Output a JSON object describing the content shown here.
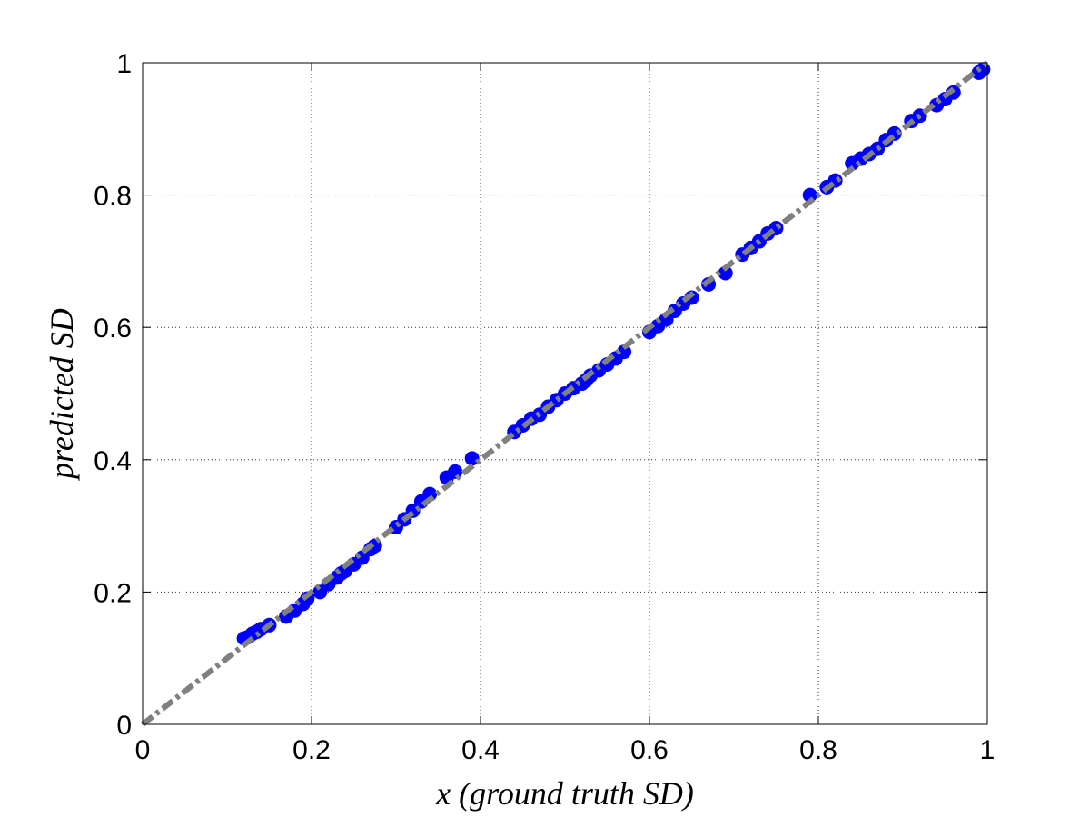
{
  "chart_data": {
    "type": "scatter",
    "xlabel": "x (ground truth SD)",
    "ylabel": "predicted SD",
    "xlim": [
      0,
      1
    ],
    "ylim": [
      0,
      1
    ],
    "x_ticks": [
      0,
      0.2,
      0.4,
      0.6,
      0.8,
      1
    ],
    "y_ticks": [
      0,
      0.2,
      0.4,
      0.6,
      0.8,
      1
    ],
    "x_tick_labels": [
      "0",
      "0.2",
      "0.4",
      "0.6",
      "0.8",
      "1"
    ],
    "y_tick_labels": [
      "0",
      "0.2",
      "0.4",
      "0.6",
      "0.8",
      "1"
    ],
    "grid": true,
    "marker_color": "#0000ff",
    "reference_line_color": "#808080",
    "reference_line": {
      "x": [
        0,
        1
      ],
      "y": [
        0,
        1
      ]
    },
    "series": [
      {
        "points": [
          [
            0.12,
            0.13
          ],
          [
            0.125,
            0.132
          ],
          [
            0.13,
            0.137
          ],
          [
            0.135,
            0.14
          ],
          [
            0.14,
            0.144
          ],
          [
            0.15,
            0.15
          ],
          [
            0.17,
            0.163
          ],
          [
            0.18,
            0.172
          ],
          [
            0.19,
            0.182
          ],
          [
            0.195,
            0.19
          ],
          [
            0.21,
            0.2
          ],
          [
            0.22,
            0.212
          ],
          [
            0.23,
            0.222
          ],
          [
            0.235,
            0.228
          ],
          [
            0.24,
            0.232
          ],
          [
            0.25,
            0.242
          ],
          [
            0.26,
            0.252
          ],
          [
            0.27,
            0.265
          ],
          [
            0.275,
            0.27
          ],
          [
            0.3,
            0.298
          ],
          [
            0.31,
            0.31
          ],
          [
            0.32,
            0.323
          ],
          [
            0.33,
            0.337
          ],
          [
            0.34,
            0.348
          ],
          [
            0.36,
            0.373
          ],
          [
            0.37,
            0.382
          ],
          [
            0.39,
            0.402
          ],
          [
            0.44,
            0.442
          ],
          [
            0.45,
            0.452
          ],
          [
            0.46,
            0.462
          ],
          [
            0.47,
            0.468
          ],
          [
            0.48,
            0.48
          ],
          [
            0.49,
            0.49
          ],
          [
            0.5,
            0.5
          ],
          [
            0.51,
            0.508
          ],
          [
            0.52,
            0.515
          ],
          [
            0.525,
            0.52
          ],
          [
            0.53,
            0.527
          ],
          [
            0.54,
            0.535
          ],
          [
            0.55,
            0.544
          ],
          [
            0.56,
            0.553
          ],
          [
            0.57,
            0.563
          ],
          [
            0.6,
            0.593
          ],
          [
            0.61,
            0.602
          ],
          [
            0.62,
            0.612
          ],
          [
            0.63,
            0.625
          ],
          [
            0.64,
            0.636
          ],
          [
            0.65,
            0.645
          ],
          [
            0.67,
            0.665
          ],
          [
            0.69,
            0.682
          ],
          [
            0.71,
            0.71
          ],
          [
            0.72,
            0.72
          ],
          [
            0.73,
            0.73
          ],
          [
            0.74,
            0.742
          ],
          [
            0.75,
            0.75
          ],
          [
            0.79,
            0.8
          ],
          [
            0.81,
            0.812
          ],
          [
            0.82,
            0.822
          ],
          [
            0.84,
            0.848
          ],
          [
            0.85,
            0.855
          ],
          [
            0.86,
            0.862
          ],
          [
            0.87,
            0.87
          ],
          [
            0.88,
            0.883
          ],
          [
            0.89,
            0.893
          ],
          [
            0.91,
            0.912
          ],
          [
            0.92,
            0.92
          ],
          [
            0.94,
            0.936
          ],
          [
            0.95,
            0.945
          ],
          [
            0.96,
            0.955
          ],
          [
            0.99,
            0.985
          ],
          [
            0.995,
            0.99
          ]
        ]
      }
    ]
  }
}
